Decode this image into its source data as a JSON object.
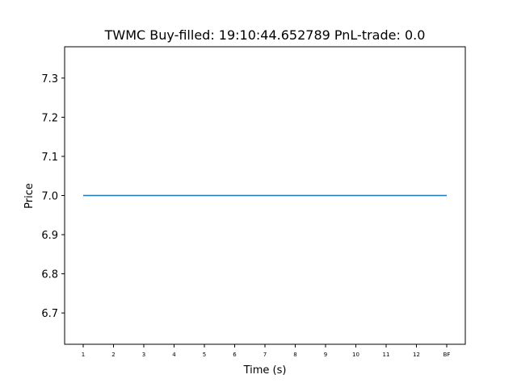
{
  "chart_data": {
    "type": "line",
    "title": "TWMC  Buy-filled:  19:10:44.652789  PnL-trade:  0.0",
    "xlabel": "Time (s)",
    "ylabel": "Price",
    "categories": [
      "1",
      "2",
      "3",
      "4",
      "5",
      "6",
      "7",
      "8",
      "9",
      "10",
      "11",
      "12",
      "BF"
    ],
    "series": [
      {
        "values": [
          7.0,
          7.0,
          7.0,
          7.0,
          7.0,
          7.0,
          7.0,
          7.0,
          7.0,
          7.0,
          7.0,
          7.0,
          7.0
        ],
        "color": "#1f77b4"
      }
    ],
    "yticks": [
      "6.7",
      "6.8",
      "6.9",
      "7.0",
      "7.1",
      "7.2",
      "7.3"
    ],
    "ylim": [
      6.62,
      7.38
    ],
    "grid": false,
    "legend": "none"
  }
}
